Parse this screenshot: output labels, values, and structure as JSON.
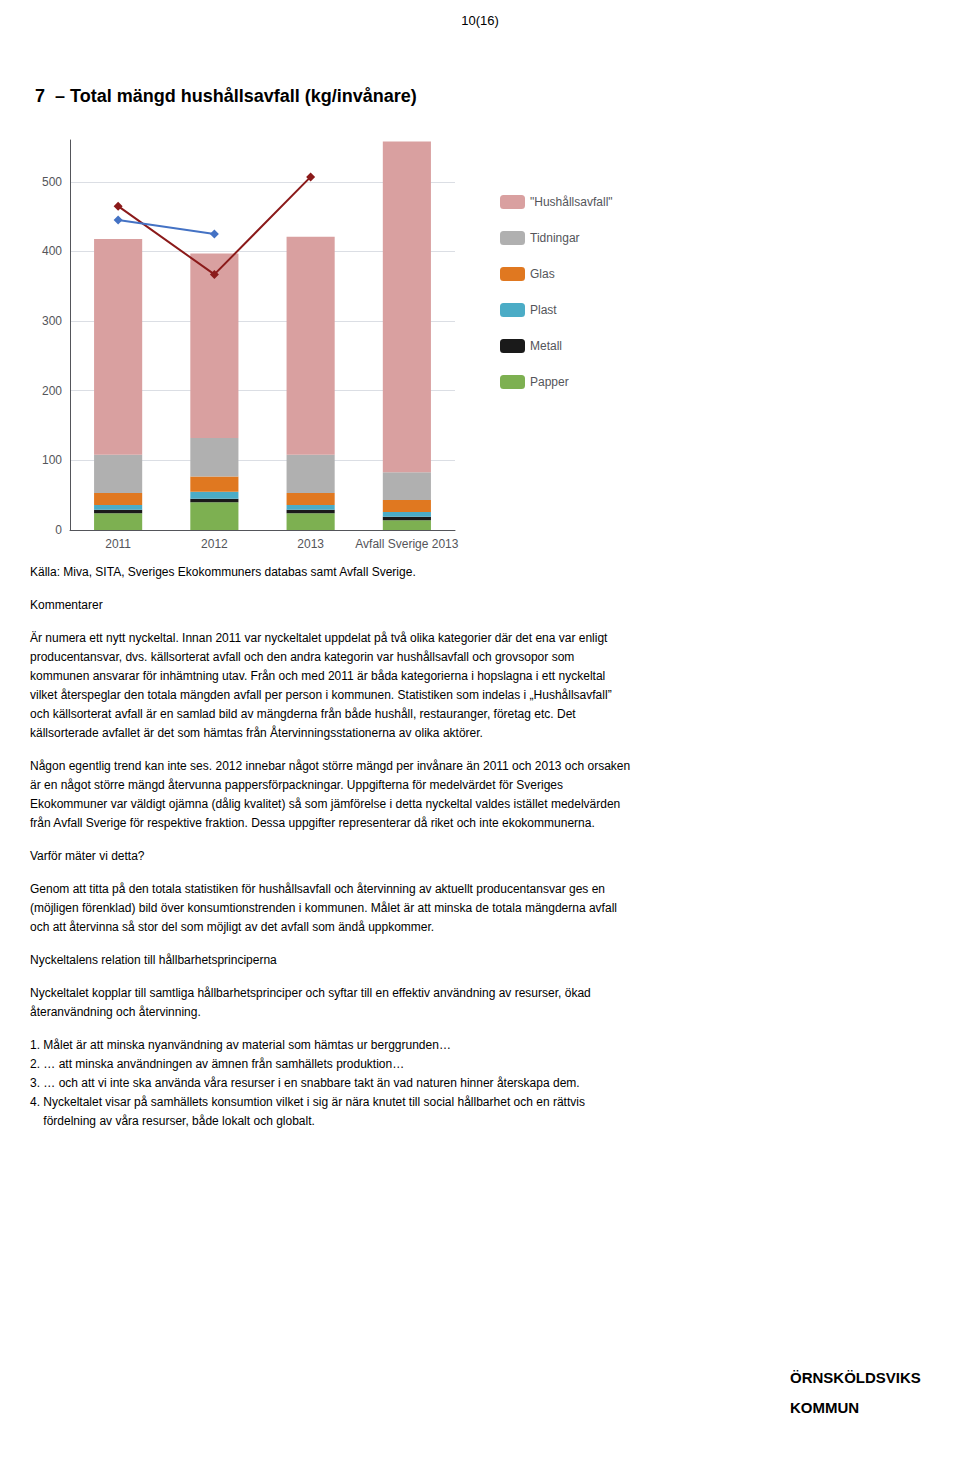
{
  "chart_data": {
    "type": "bar",
    "title": "7  – Total mängd hushållsavfall (kg/invånare)",
    "categories": [
      "2011",
      "2012",
      "2013",
      "Avfall Sverige 2013"
    ],
    "stacked": true,
    "series": [
      {
        "name": "Papper",
        "type": "bar",
        "color": "#7db051",
        "values": [
          24,
          40,
          24,
          14
        ]
      },
      {
        "name": "Metall",
        "type": "bar",
        "color": "#1a1a1a",
        "values": [
          5,
          5,
          5,
          5
        ]
      },
      {
        "name": "Plast",
        "type": "bar",
        "color": "#4bacc6",
        "values": [
          7,
          10,
          7,
          7
        ]
      },
      {
        "name": "Glas",
        "type": "bar",
        "color": "#e07820",
        "values": [
          17,
          22,
          17,
          17
        ]
      },
      {
        "name": "Tidningar",
        "type": "bar",
        "color": "#b0b0b0",
        "values": [
          55,
          55,
          55,
          40
        ]
      },
      {
        "name": "\"Hushållsavfall\"",
        "type": "bar",
        "color": "#d9a0a0",
        "values": [
          310,
          265,
          313,
          475
        ]
      },
      {
        "type": "line",
        "color": "#8b1a1a",
        "marker": "diamond",
        "values": [
          465,
          367,
          507,
          null
        ]
      },
      {
        "type": "line",
        "color": "#4472c4",
        "marker": "diamond",
        "values": [
          445,
          425,
          null,
          null
        ]
      }
    ],
    "ylim": [
      0,
      560
    ],
    "yticks": [
      0,
      100,
      200,
      300,
      400,
      500
    ],
    "grid": true,
    "legend": "right",
    "annotations": [
      [
        "10(16)"
      ],
      [
        "Källa: Miva, SITA, Sveriges Ekokommuners databas samt Avfall Sverige."
      ],
      [
        "Kommentarer"
      ],
      [
        "Är numera ett nytt nyckeltal. Innan 2011 var nyckeltalet uppdelat på två olika kategorier där det ena var enligt",
        "producentansvar, dvs. källsorterat avfall och den andra kategorin var hushållsavfall och grovsopor som",
        "kommunen ansvarar för inhämtning utav. Från och med 2011 är båda kategorierna i hopslagna i ett nyckeltal",
        "vilket återspeglar den totala mängden avfall per person i kommunen. Statistiken som indelas i „Hushållsavfall”",
        "och källsorterat avfall är en samlad bild av mängderna från både hushåll, restauranger, företag etc. Det",
        "källsorterade avfallet är det som hämtas från Återvinningsstationerna av olika aktörer."
      ],
      [
        "Någon egentlig trend kan inte ses. 2012 innebar något större mängd per invånare än 2011 och 2013 och orsaken",
        "är en något större mängd återvunna pappersförpackningar. Uppgifterna för medelvärdet för Sveriges",
        "Ekokommuner var väldigt ojämna (dålig kvalitet) så som jämförelse i detta nyckeltal valdes istället medelvärden",
        "från Avfall Sverige för respektive fraktion. Dessa uppgifter representerar då riket och inte ekokommunerna."
      ],
      [
        "Varför mäter vi detta?"
      ],
      [
        "Genom att titta på den totala statistiken för hushållsavfall och återvinning av aktuellt producentansvar ges en",
        "(möjligen förenklad) bild över konsumtionstrenden i kommunen. Målet är att minska de totala mängderna avfall",
        "och att återvinna så stor del som möjligt av det avfall som ändå uppkommer."
      ],
      [
        "Nyckeltalens relation till hållbarhetsprinciperna"
      ],
      [
        "Nyckeltalet kopplar till samtliga hållbarhetsprinciper och syftar till en effektiv användning av resurser, ökad",
        "återanvändning och återvinning."
      ],
      [
        "1. Målet är att minska nyanvändning av material som hämtas ur berggrunden…",
        "2. … att minska användningen av ämnen från samhällets produktion…",
        "3. … och att vi inte ska använda våra resurser i en snabbare takt än vad naturen hinner återskapa dem.",
        "4. Nyckeltalet visar på samhällets konsumtion vilket i sig är nära knutet till social hållbarhet och en rättvis",
        "    fördelning av våra resurser, både lokalt och globalt."
      ],
      [
        "ÖRNSKÖLDSVIKS",
        "KOMMUN"
      ]
    ]
  }
}
